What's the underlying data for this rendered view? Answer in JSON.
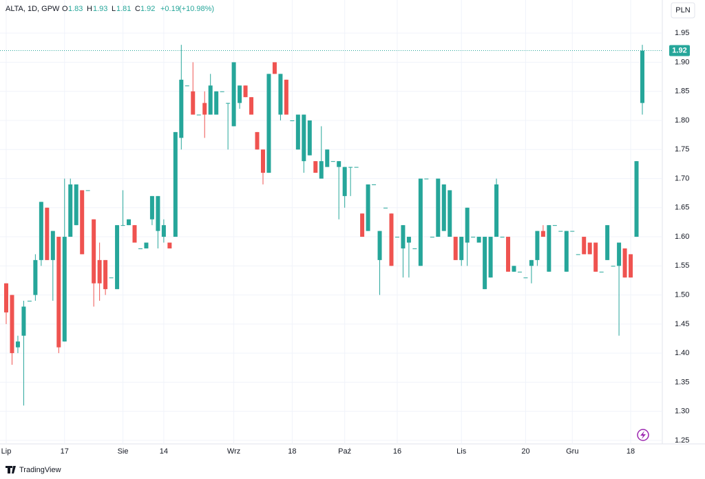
{
  "chart_data": {
    "type": "candlestick",
    "symbol": "ALTA, 1D, GPW",
    "ohlc_labels": [
      "O",
      "H",
      "L",
      "C"
    ],
    "change": "+0.19",
    "change_pct": "(+10.98%)",
    "currency": "PLN",
    "brand": "TradingView",
    "up_color": "#26a69a",
    "down_color": "#ef5350",
    "ylim": [
      1.244,
      2.007
    ],
    "yticks": [
      1.25,
      {
        "value": 1.3,
        "label": "1.30"
      },
      1.35,
      {
        "value": 1.4,
        "label": "1.40"
      },
      1.45,
      {
        "value": 1.5,
        "label": "1.50"
      },
      1.55,
      {
        "value": 1.6,
        "label": "1.60"
      },
      1.65,
      {
        "value": 1.7,
        "label": "1.70"
      },
      1.75,
      {
        "value": 1.8,
        "label": "1.80"
      },
      1.85,
      {
        "value": 1.9,
        "label": "1.90"
      },
      1.95
    ],
    "grid": true,
    "categories": [
      "Lip",
      null,
      null,
      null,
      null,
      null,
      null,
      null,
      null,
      null,
      "17",
      null,
      null,
      null,
      null,
      null,
      null,
      null,
      null,
      null,
      "Sie",
      null,
      null,
      null,
      null,
      null,
      null,
      "14",
      null,
      null,
      null,
      null,
      null,
      null,
      null,
      null,
      null,
      null,
      null,
      "Wrz",
      null,
      null,
      null,
      null,
      null,
      null,
      null,
      null,
      null,
      "18",
      null,
      null,
      null,
      null,
      null,
      null,
      null,
      null,
      "Paź",
      null,
      null,
      null,
      null,
      null,
      null,
      null,
      null,
      "16",
      null,
      null,
      null,
      null,
      null,
      null,
      null,
      null,
      null,
      null,
      "Lis",
      null,
      null,
      null,
      null,
      null,
      null,
      null,
      null,
      null,
      null,
      "20",
      null,
      null,
      null,
      null,
      null,
      null,
      null,
      "Gru",
      null,
      null,
      null,
      null,
      null,
      null,
      null,
      null,
      null,
      "18",
      null,
      null
    ],
    "open": [
      1.52,
      1.5,
      1.41,
      1.43,
      1.49,
      1.5,
      1.56,
      1.65,
      1.56,
      1.6,
      1.42,
      1.6,
      1.62,
      1.68,
      1.68,
      1.63,
      1.56,
      1.56,
      1.53,
      1.51,
      1.62,
      1.62,
      1.62,
      1.58,
      1.58,
      1.63,
      1.61,
      1.6,
      1.59,
      1.6,
      1.77,
      1.86,
      1.85,
      1.81,
      1.83,
      1.81,
      1.81,
      1.85,
      1.83,
      1.79,
      1.83,
      1.86,
      1.84,
      1.78,
      1.75,
      1.71,
      1.9,
      1.81,
      1.87,
      1.8,
      1.75,
      1.73,
      1.74,
      1.73,
      1.7,
      1.72,
      1.73,
      1.72,
      1.67,
      1.72,
      1.72,
      1.64,
      1.61,
      1.69,
      1.56,
      1.65,
      1.64,
      1.6,
      1.58,
      1.59,
      1.58,
      1.55,
      1.7,
      1.6,
      1.6,
      1.61,
      1.6,
      1.6,
      1.56,
      1.59,
      1.6,
      1.59,
      1.51,
      1.53,
      1.6,
      1.6,
      1.6,
      1.54,
      1.54,
      1.53,
      1.55,
      1.56,
      1.61,
      1.54,
      1.62,
      1.61,
      1.54,
      1.61,
      1.57,
      1.6,
      1.59,
      1.59,
      1.54,
      1.56,
      1.55,
      1.55,
      1.58,
      1.57,
      1.6,
      1.83
    ],
    "high": [
      1.52,
      1.5,
      1.43,
      1.49,
      1.49,
      1.57,
      1.66,
      1.65,
      1.61,
      1.6,
      1.7,
      1.7,
      1.69,
      1.68,
      1.68,
      1.63,
      1.59,
      1.56,
      1.53,
      1.62,
      1.68,
      1.63,
      1.62,
      1.58,
      1.59,
      1.67,
      1.67,
      1.63,
      1.59,
      1.78,
      1.93,
      1.86,
      1.9,
      1.81,
      1.85,
      1.88,
      1.85,
      1.85,
      1.83,
      1.9,
      1.86,
      1.86,
      1.84,
      1.78,
      1.75,
      1.88,
      1.9,
      1.88,
      1.87,
      1.8,
      1.81,
      1.81,
      1.8,
      1.73,
      1.79,
      1.75,
      1.73,
      1.73,
      1.72,
      1.72,
      1.72,
      1.64,
      1.69,
      1.69,
      1.61,
      1.65,
      1.64,
      1.6,
      1.62,
      1.6,
      1.58,
      1.7,
      1.7,
      1.6,
      1.7,
      1.69,
      1.68,
      1.6,
      1.6,
      1.65,
      1.6,
      1.6,
      1.6,
      1.6,
      1.7,
      1.6,
      1.6,
      1.55,
      1.54,
      1.53,
      1.56,
      1.61,
      1.62,
      1.62,
      1.62,
      1.61,
      1.61,
      1.61,
      1.57,
      1.6,
      1.59,
      1.59,
      1.54,
      1.62,
      1.55,
      1.59,
      1.58,
      1.57,
      1.73,
      1.93
    ],
    "low": [
      1.45,
      1.38,
      1.4,
      1.31,
      1.49,
      1.49,
      1.55,
      1.56,
      1.49,
      1.4,
      1.42,
      1.6,
      1.62,
      1.57,
      1.68,
      1.48,
      1.49,
      1.5,
      1.53,
      1.51,
      1.62,
      1.62,
      1.59,
      1.58,
      1.58,
      1.62,
      1.58,
      1.59,
      1.58,
      1.6,
      1.75,
      1.86,
      1.81,
      1.81,
      1.77,
      1.81,
      1.81,
      1.85,
      1.75,
      1.79,
      1.82,
      1.84,
      1.81,
      1.75,
      1.69,
      1.71,
      1.88,
      1.8,
      1.81,
      1.8,
      1.75,
      1.71,
      1.74,
      1.71,
      1.7,
      1.72,
      1.73,
      1.63,
      1.65,
      1.67,
      1.72,
      1.6,
      1.61,
      1.69,
      1.5,
      1.65,
      1.55,
      1.6,
      1.53,
      1.53,
      1.58,
      1.55,
      1.7,
      1.6,
      1.6,
      1.61,
      1.6,
      1.56,
      1.55,
      1.55,
      1.6,
      1.59,
      1.51,
      1.53,
      1.6,
      1.6,
      1.54,
      1.54,
      1.54,
      1.53,
      1.52,
      1.55,
      1.6,
      1.54,
      1.62,
      1.61,
      1.54,
      1.61,
      1.57,
      1.57,
      1.57,
      1.54,
      1.54,
      1.56,
      1.55,
      1.43,
      1.53,
      1.53,
      1.6,
      1.81
    ],
    "close": [
      1.47,
      1.4,
      1.42,
      1.48,
      1.49,
      1.56,
      1.66,
      1.56,
      1.61,
      1.41,
      1.6,
      1.69,
      1.69,
      1.57,
      1.68,
      1.52,
      1.52,
      1.51,
      1.53,
      1.62,
      1.62,
      1.63,
      1.59,
      1.58,
      1.59,
      1.67,
      1.67,
      1.62,
      1.58,
      1.78,
      1.87,
      1.86,
      1.81,
      1.81,
      1.81,
      1.86,
      1.85,
      1.85,
      1.83,
      1.9,
      1.86,
      1.84,
      1.81,
      1.75,
      1.71,
      1.88,
      1.88,
      1.88,
      1.81,
      1.8,
      1.81,
      1.81,
      1.8,
      1.71,
      1.73,
      1.75,
      1.73,
      1.73,
      1.72,
      1.72,
      1.72,
      1.6,
      1.69,
      1.69,
      1.61,
      1.65,
      1.55,
      1.6,
      1.62,
      1.6,
      1.58,
      1.7,
      1.7,
      1.6,
      1.7,
      1.69,
      1.68,
      1.56,
      1.6,
      1.65,
      1.6,
      1.6,
      1.6,
      1.6,
      1.69,
      1.6,
      1.54,
      1.55,
      1.54,
      1.53,
      1.56,
      1.61,
      1.6,
      1.62,
      1.62,
      1.61,
      1.61,
      1.61,
      1.57,
      1.57,
      1.57,
      1.54,
      1.54,
      1.62,
      1.55,
      1.59,
      1.53,
      1.53,
      1.73,
      1.92
    ]
  }
}
